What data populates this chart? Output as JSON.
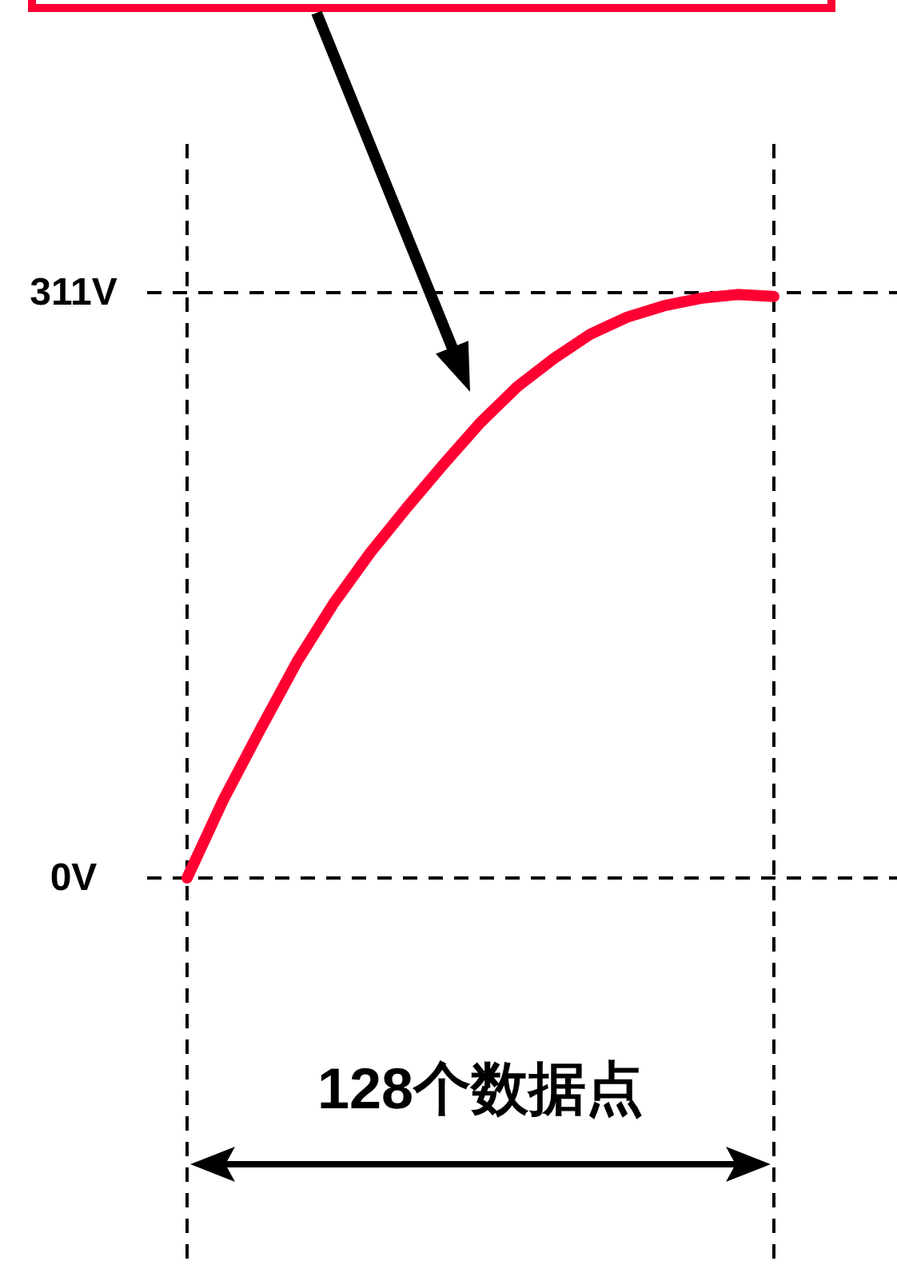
{
  "chart_data": {
    "type": "line",
    "categories": [
      null,
      null,
      null,
      null,
      null,
      null,
      null,
      null,
      null,
      null,
      null,
      null,
      null,
      null,
      null,
      null,
      null
    ],
    "ylim": [
      0,
      311
    ],
    "yticks": [
      {
        "value": 0,
        "label": "0V"
      },
      {
        "value": 311,
        "label": "311V"
      }
    ],
    "grid": "y",
    "series": [
      {
        "color": "#ff0033",
        "values": [
          0,
          42,
          79,
          115,
          146,
          173,
          197,
          220,
          242,
          261,
          276,
          289,
          298,
          304,
          308,
          310,
          309
        ]
      }
    ],
    "annotations": [
      "128个数据点"
    ]
  }
}
